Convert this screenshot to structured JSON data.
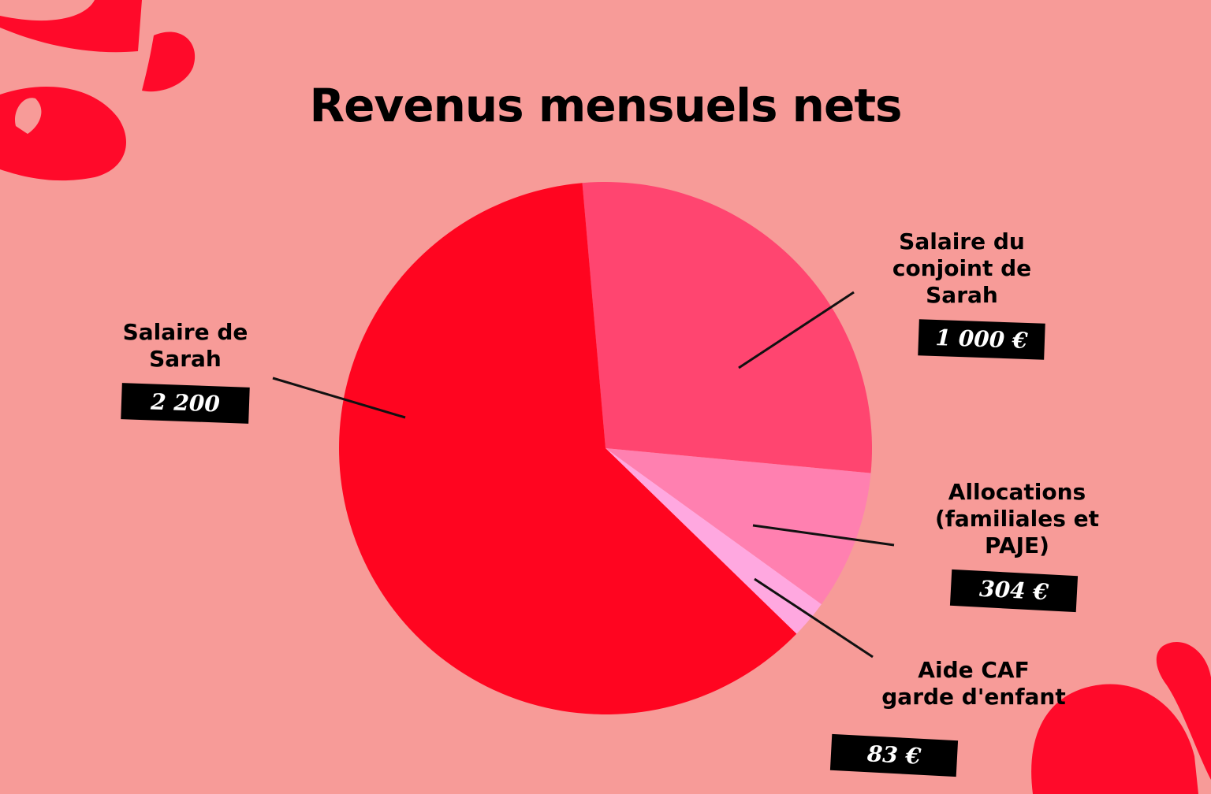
{
  "title": "Revenus mensuels nets",
  "colors": {
    "background": "#f79b98",
    "decor": "#ff0a2a"
  },
  "chart_data": {
    "type": "pie",
    "title": "Revenus mensuels nets",
    "slices": [
      {
        "label": "Salaire de Sarah",
        "value": 2200,
        "value_text": "2 200",
        "color": "#ff0520"
      },
      {
        "label": "Salaire du conjoint de Sarah",
        "value": 1000,
        "value_text": "1 000 €",
        "color": "#ff4570"
      },
      {
        "label": "Allocations (familiales et PAJE)",
        "value": 304,
        "value_text": "304 €",
        "color": "#ff80b0"
      },
      {
        "label": "Aide CAF garde d'enfant",
        "value": 83,
        "value_text": "83 €",
        "color": "#ffa8e0"
      }
    ]
  },
  "labels": {
    "sarah": "Salaire de\nSarah",
    "conjoint": "Salaire du\nconjoint de\nSarah",
    "allocations": "Allocations\n(familiales et\nPAJE)",
    "aide": "Aide CAF\ngarde d'enfant"
  }
}
